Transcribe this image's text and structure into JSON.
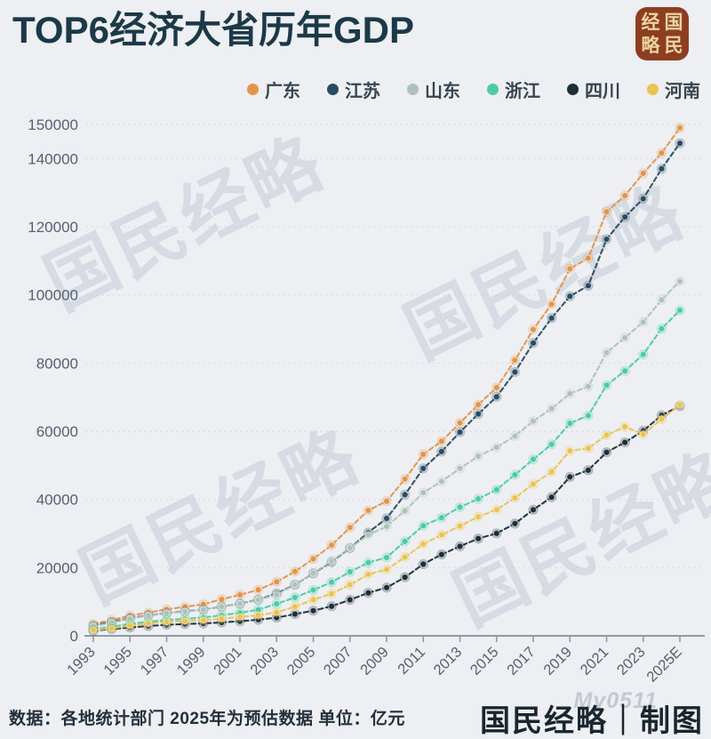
{
  "header": {
    "title": "TOP6经济大省历年GDP"
  },
  "logo": {
    "chars": [
      "经",
      "国",
      "略",
      "民"
    ],
    "bg": "#8e3d21",
    "fg": "#ead6a0"
  },
  "watermark": {
    "text": "国民经略"
  },
  "footer": {
    "source": "数据：各地统计部门 2025年为预估数据 单位：亿元",
    "credit": "国民经略｜制图",
    "site_watermark": "My0511"
  },
  "chart_data": {
    "type": "line",
    "title": "TOP6经济大省历年GDP",
    "unit": "亿元",
    "xlabel": "",
    "ylabel": "",
    "ylim": [
      0,
      150000
    ],
    "grid": "dotted-horizontal",
    "legend_position": "top-right",
    "line_style": "dashed-with-dot-markers",
    "years": [
      1993,
      1994,
      1995,
      1996,
      1997,
      1998,
      1999,
      2000,
      2001,
      2002,
      2003,
      2004,
      2005,
      2006,
      2007,
      2008,
      2009,
      2010,
      2011,
      2012,
      2013,
      2014,
      2015,
      2016,
      2017,
      2018,
      2019,
      2020,
      2021,
      2022,
      2023,
      2024,
      2025
    ],
    "x_ticks": [
      {
        "year": 1993,
        "label": "1993"
      },
      {
        "year": 1995,
        "label": "1995"
      },
      {
        "year": 1997,
        "label": "1997"
      },
      {
        "year": 1999,
        "label": "1999"
      },
      {
        "year": 2001,
        "label": "2001"
      },
      {
        "year": 2003,
        "label": "2003"
      },
      {
        "year": 2005,
        "label": "2005"
      },
      {
        "year": 2007,
        "label": "2007"
      },
      {
        "year": 2009,
        "label": "2009"
      },
      {
        "year": 2011,
        "label": "2011"
      },
      {
        "year": 2013,
        "label": "2013"
      },
      {
        "year": 2015,
        "label": "2015"
      },
      {
        "year": 2017,
        "label": "2017"
      },
      {
        "year": 2019,
        "label": "2019"
      },
      {
        "year": 2021,
        "label": "2021"
      },
      {
        "year": 2023,
        "label": "2023"
      },
      {
        "year": 2025,
        "label": "2025E"
      }
    ],
    "y_ticks": [
      0,
      20000,
      40000,
      60000,
      80000,
      100000,
      120000,
      140000,
      150000
    ],
    "series": [
      {
        "name": "广东",
        "color": "#e2954b",
        "values": [
          3469,
          4619,
          5933,
          6835,
          7775,
          8530,
          9251,
          10741,
          12039,
          13502,
          15845,
          18865,
          22557,
          26588,
          31777,
          36797,
          39483,
          46013,
          53246,
          57068,
          62475,
          67810,
          72813,
          80855,
          89879,
          97278,
          107671,
          110761,
          124370,
          129119,
          135673,
          141634,
          149000
        ]
      },
      {
        "name": "江苏",
        "color": "#2b4b60",
        "values": [
          2998,
          4057,
          5155,
          6004,
          6680,
          7200,
          7698,
          8554,
          9457,
          10607,
          12443,
          15004,
          18306,
          21645,
          25741,
          30313,
          34457,
          41425,
          49110,
          54058,
          59753,
          65088,
          70116,
          77388,
          85900,
          93207,
          99632,
          102719,
          116364,
          122875,
          128222,
          137008,
          144500
        ]
      },
      {
        "name": "山东",
        "color": "#afc2ba",
        "values": [
          2770,
          3872,
          5002,
          5960,
          6650,
          7162,
          7662,
          8542,
          9438,
          10552,
          12078,
          15022,
          18367,
          21900,
          25777,
          29600,
          32100,
          36700,
          42000,
          45300,
          49100,
          52700,
          55300,
          58600,
          63012,
          66649,
          71068,
          73129,
          83096,
          87435,
          92069,
          98566,
          104000
        ]
      },
      {
        "name": "浙江",
        "color": "#4ccba4",
        "values": [
          1926,
          2667,
          3525,
          4146,
          4638,
          4988,
          5365,
          6036,
          6748,
          7670,
          9395,
          11243,
          13438,
          15742,
          18780,
          21487,
          22990,
          27722,
          32319,
          34665,
          37757,
          40173,
          42886,
          47251,
          51768,
          56197,
          62352,
          64613,
          73516,
          77715,
          82553,
          90100,
          95500
        ]
      },
      {
        "name": "四川",
        "color": "#1c2f39",
        "values": [
          1510,
          2001,
          2443,
          2872,
          3241,
          3474,
          3649,
          3928,
          4293,
          4725,
          5333,
          6380,
          7385,
          8690,
          10562,
          12601,
          14151,
          17185,
          21027,
          23873,
          26261,
          28537,
          30053,
          32935,
          36980,
          40678,
          46616,
          48599,
          53851,
          56750,
          60133,
          64697,
          67400
        ]
      },
      {
        "name": "河南",
        "color": "#eac352",
        "values": [
          1660,
          2217,
          3003,
          3661,
          4079,
          4356,
          4576,
          5053,
          5533,
          6035,
          6868,
          8554,
          10587,
          12363,
          15012,
          18019,
          19480,
          23092,
          26931,
          29599,
          32191,
          34938,
          37002,
          40472,
          44553,
          48056,
          54259,
          54997,
          58887,
          61345,
          59132,
          63590,
          67700
        ]
      }
    ]
  }
}
